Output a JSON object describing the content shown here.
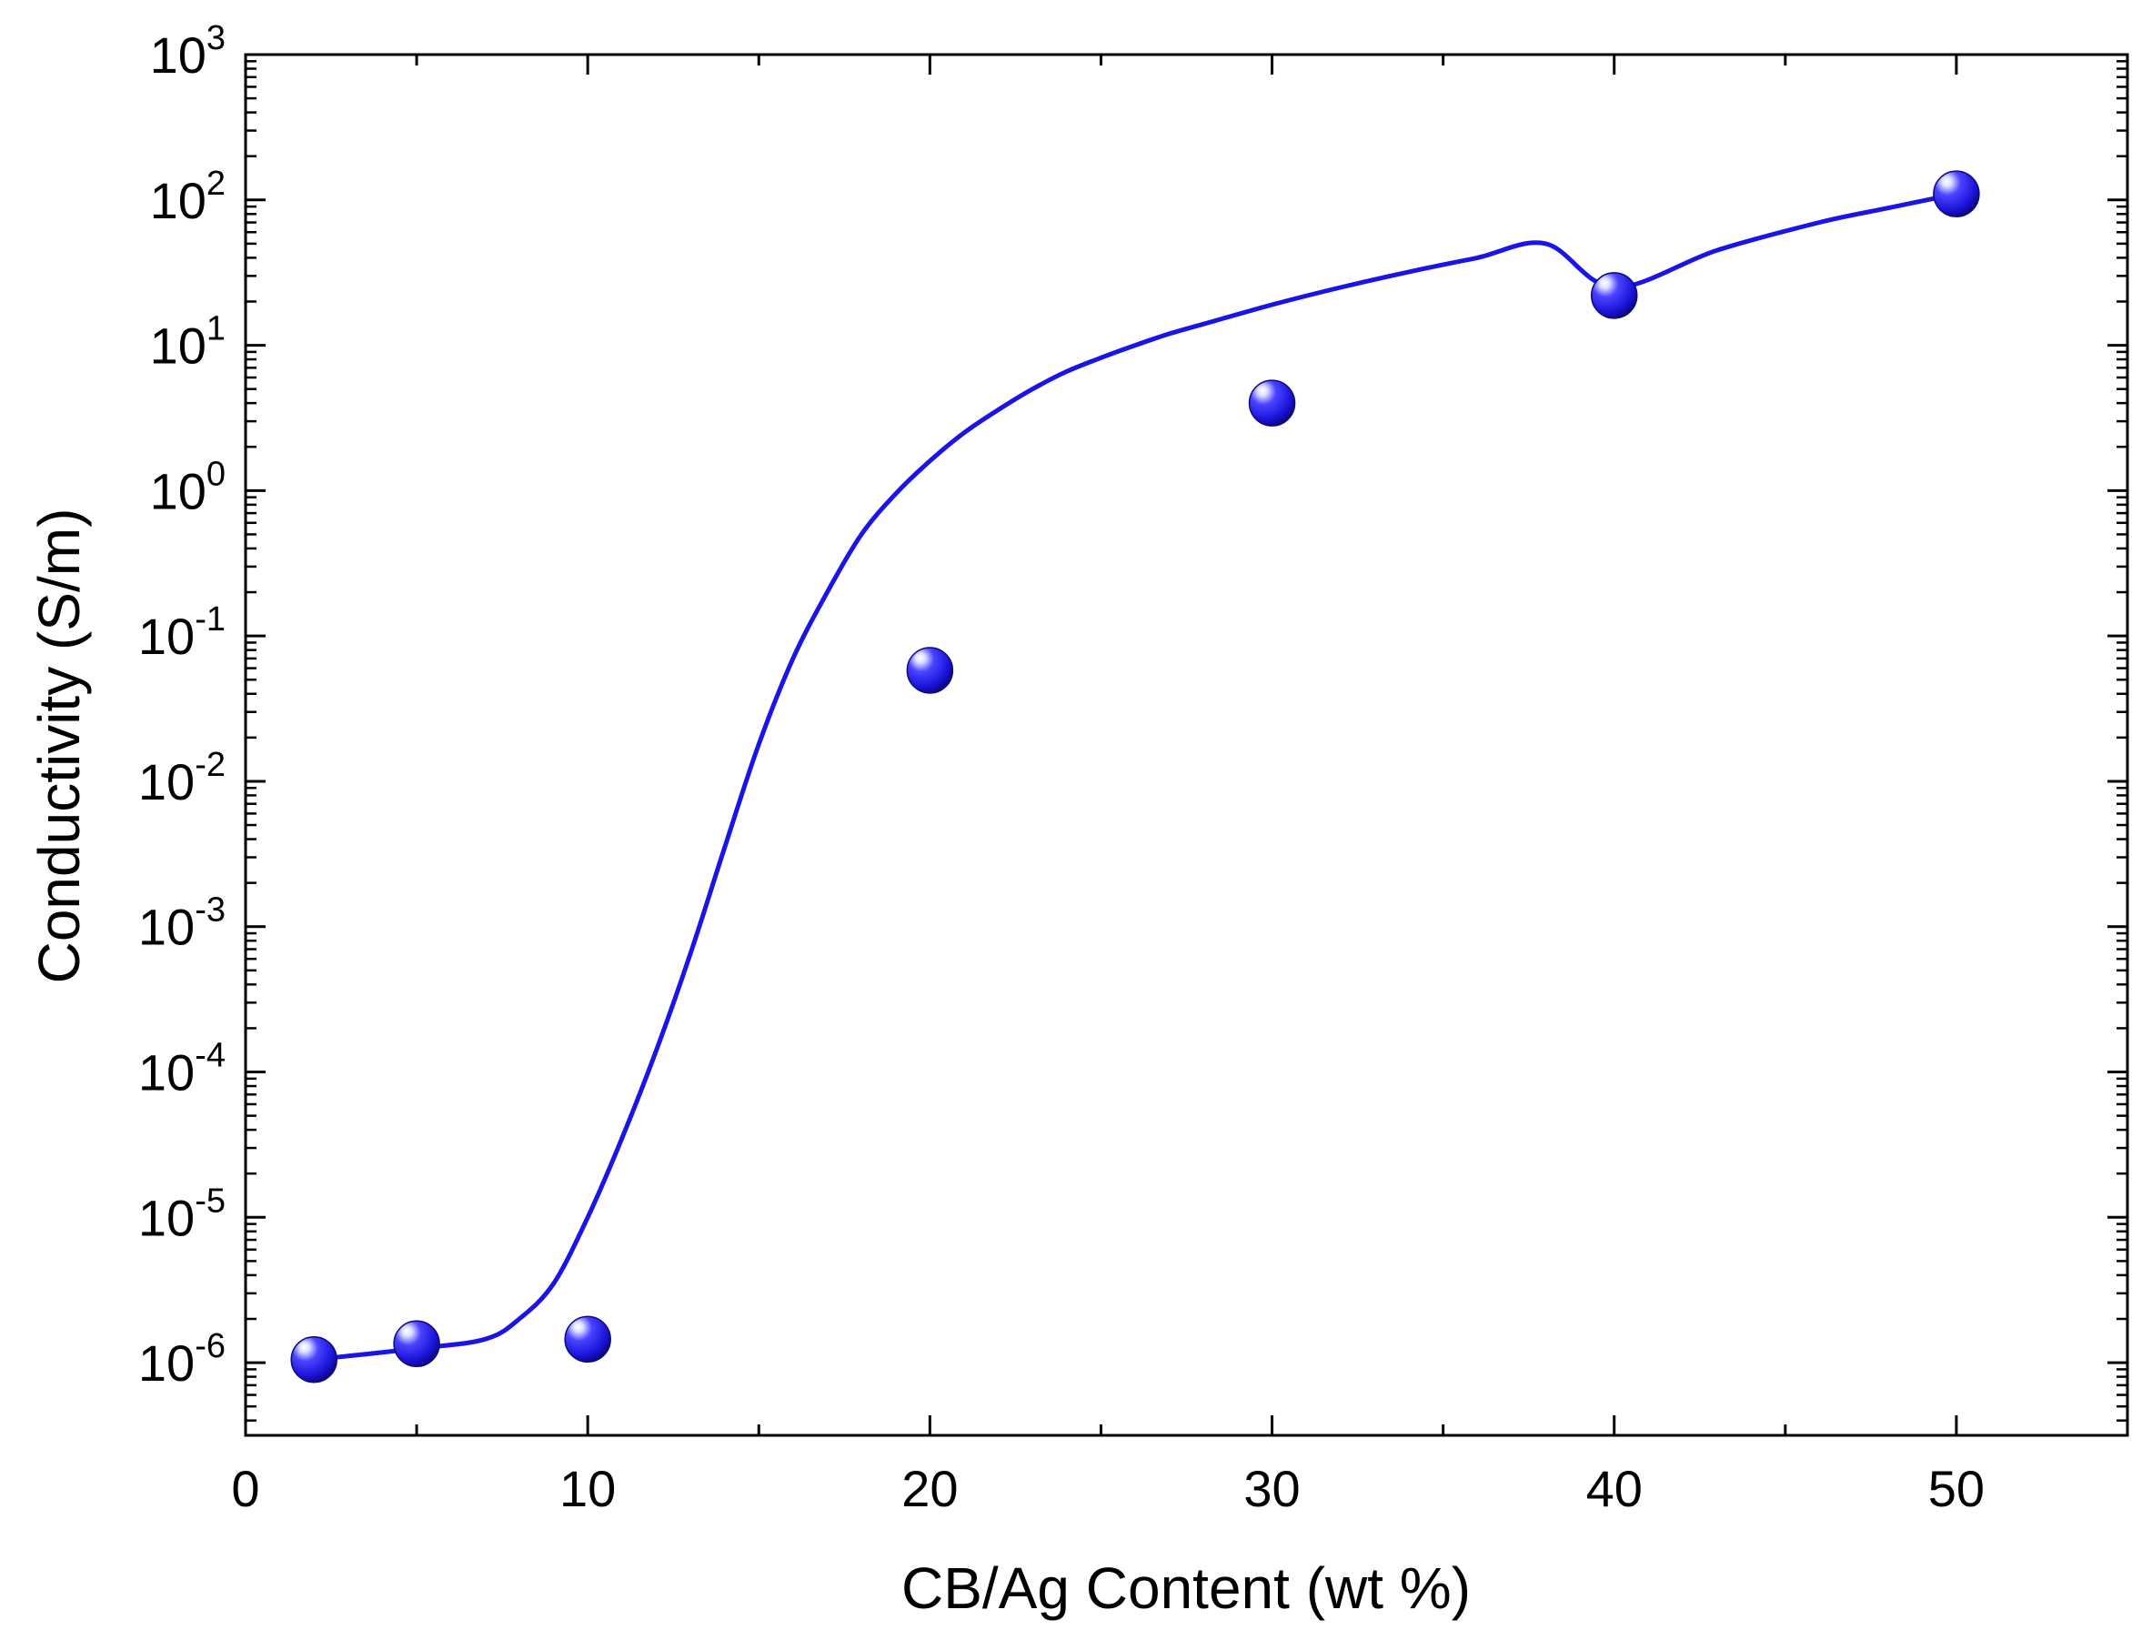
{
  "chart_data": {
    "type": "scatter",
    "title": "",
    "xlabel": "CB/Ag Content (wt %)",
    "ylabel": "Conductivity (S/m)",
    "xlim": [
      0,
      55
    ],
    "ylim": [
      3.162e-07,
      1000
    ],
    "y_scale": "log",
    "grid": false,
    "legend": "none",
    "x_ticks": [
      0,
      10,
      20,
      30,
      40,
      50
    ],
    "x_tick_labels": [
      "0",
      "10",
      "20",
      "30",
      "40",
      "50"
    ],
    "y_ticks": [
      1e-06,
      1e-05,
      0.0001,
      0.001,
      0.01,
      0.1,
      1,
      10,
      100,
      1000
    ],
    "y_tick_labels": [
      {
        "base": "10",
        "exp": "-6"
      },
      {
        "base": "10",
        "exp": "-5"
      },
      {
        "base": "10",
        "exp": "-4"
      },
      {
        "base": "10",
        "exp": "-3"
      },
      {
        "base": "10",
        "exp": "-2"
      },
      {
        "base": "10",
        "exp": "-1"
      },
      {
        "base": "10",
        "exp": "0"
      },
      {
        "base": "10",
        "exp": "1"
      },
      {
        "base": "10",
        "exp": "2"
      },
      {
        "base": "10",
        "exp": "3"
      }
    ],
    "series": [
      {
        "marker": "sphere",
        "color": "#1a14e6",
        "x": [
          2,
          5,
          10,
          20,
          30,
          40,
          50
        ],
        "y": [
          1.05e-06,
          1.35e-06,
          1.45e-06,
          0.058,
          4.0,
          22,
          110
        ]
      }
    ],
    "fit_curve": {
      "color": "#1a14e6",
      "x": [
        2,
        5,
        7,
        8,
        9,
        10,
        11,
        12,
        13,
        14,
        15,
        16,
        17,
        18,
        19,
        20,
        21,
        22,
        23,
        24,
        25,
        26,
        27,
        28,
        30,
        32,
        34,
        36,
        38,
        40,
        43,
        46,
        48,
        50
      ],
      "y": [
        1.05e-06,
        1.25e-06,
        1.45e-06,
        2e-06,
        3.5e-06,
        1e-05,
        3.5e-05,
        0.00014,
        0.00065,
        0.0035,
        0.018,
        0.07,
        0.2,
        0.5,
        0.95,
        1.6,
        2.5,
        3.6,
        5.0,
        6.6,
        8.2,
        10,
        12,
        14,
        19,
        25,
        32,
        40,
        50,
        25,
        45,
        70,
        88,
        110
      ]
    }
  }
}
